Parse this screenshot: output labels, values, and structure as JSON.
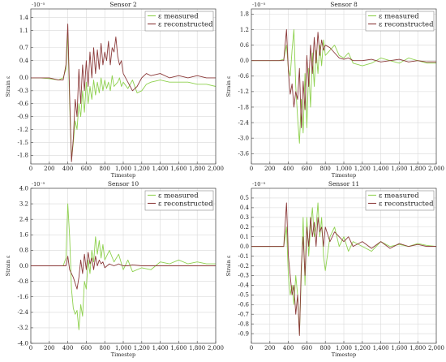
{
  "colors": {
    "measured": "#8fd14f",
    "reconstructed": "#8b3a3a",
    "grid": "#d9d9d9",
    "frame": "#444444"
  },
  "chart_data": [
    {
      "type": "line",
      "title": "Sensor 2",
      "xlabel": "Timestep",
      "ylabel": "Strain ε",
      "exponent": "·10⁻⁵",
      "xlim": [
        0,
        2000
      ],
      "ylim": [
        -2.0,
        1.6
      ],
      "xticks": [
        0,
        200,
        400,
        600,
        800,
        1000,
        1200,
        1400,
        1600,
        1800,
        2000
      ],
      "xtick_labels": [
        "0",
        "200",
        "400",
        "600",
        "800",
        "1,000",
        "1,200",
        "1,400",
        "1,600",
        "1,800",
        "2,000"
      ],
      "yticks": [
        -1.8,
        -1.5,
        -1.2,
        -0.9,
        -0.6,
        -0.3,
        0,
        0.4,
        0.7,
        1.1,
        1.4
      ],
      "ytick_labels": [
        "-1.8",
        "-1.5",
        "-1.2",
        "-0.9",
        "-0.6",
        "-0.3",
        "0.0",
        "0.4",
        "0.7",
        "1.1",
        "1.4"
      ],
      "grid": true,
      "legend": "top-right",
      "series": [
        {
          "name": "ε measured",
          "x": [
            0,
            100,
            200,
            300,
            350,
            380,
            400,
            420,
            440,
            460,
            480,
            500,
            520,
            540,
            560,
            580,
            600,
            620,
            640,
            660,
            680,
            700,
            720,
            740,
            760,
            780,
            800,
            820,
            840,
            860,
            880,
            900,
            920,
            940,
            960,
            980,
            1000,
            1050,
            1100,
            1150,
            1200,
            1250,
            1300,
            1400,
            1500,
            1600,
            1700,
            1800,
            1900,
            2000
          ],
          "y": [
            0,
            0,
            -0.02,
            -0.05,
            0,
            0.2,
            1.05,
            -0.6,
            -1.9,
            -1.5,
            -1.0,
            -1.2,
            -0.6,
            -0.9,
            -0.3,
            -0.8,
            -0.1,
            -0.6,
            -0.2,
            -0.5,
            -0.05,
            -0.4,
            -0.1,
            -0.35,
            0,
            -0.3,
            -0.05,
            -0.25,
            -0.1,
            -0.3,
            0.05,
            -0.2,
            -0.15,
            -0.1,
            0,
            -0.2,
            -0.1,
            -0.25,
            -0.05,
            -0.35,
            -0.3,
            -0.15,
            -0.1,
            -0.05,
            -0.1,
            -0.1,
            -0.1,
            -0.15,
            -0.15,
            -0.2
          ]
        },
        {
          "name": "ε reconstructed",
          "x": [
            0,
            100,
            200,
            300,
            350,
            380,
            400,
            420,
            440,
            460,
            480,
            500,
            520,
            540,
            560,
            580,
            600,
            620,
            640,
            660,
            680,
            700,
            720,
            740,
            760,
            780,
            800,
            820,
            840,
            860,
            880,
            900,
            920,
            940,
            960,
            980,
            1000,
            1050,
            1100,
            1150,
            1200,
            1250,
            1300,
            1400,
            1500,
            1600,
            1700,
            1800,
            1900,
            2000
          ],
          "y": [
            0,
            0,
            0,
            -0.05,
            -0.05,
            0.3,
            1.25,
            -0.4,
            -1.95,
            -1.4,
            -0.5,
            -0.9,
            0.2,
            -0.6,
            0.3,
            -0.3,
            0.4,
            -0.2,
            0.6,
            0,
            0.7,
            0.1,
            0.65,
            0.2,
            0.8,
            0.3,
            0.6,
            0.4,
            0.85,
            0.3,
            0.7,
            0.6,
            0.95,
            0.5,
            0.3,
            0.4,
            0.1,
            -0.1,
            -0.3,
            -0.2,
            0,
            0.1,
            0.05,
            0.1,
            0,
            0.05,
            0,
            0.05,
            0,
            0
          ]
        }
      ]
    },
    {
      "type": "line",
      "title": "Sensor 8",
      "xlabel": "Timestep",
      "ylabel": "Strain ε",
      "exponent": "·10⁻⁵",
      "xlim": [
        0,
        2000
      ],
      "ylim": [
        -4.0,
        2.0
      ],
      "xticks": [
        0,
        200,
        400,
        600,
        800,
        1000,
        1200,
        1400,
        1600,
        1800,
        2000
      ],
      "xtick_labels": [
        "0",
        "200",
        "400",
        "600",
        "800",
        "1,000",
        "1,200",
        "1,400",
        "1,600",
        "1,800",
        "2,000"
      ],
      "yticks": [
        -3.6,
        -3.0,
        -2.4,
        -1.8,
        -1.2,
        -0.6,
        0,
        0.6,
        1.2,
        1.8
      ],
      "ytick_labels": [
        "-3.6",
        "-3.0",
        "-2.4",
        "-1.8",
        "-1.2",
        "-0.6",
        "0.0",
        "0.6",
        "1.2",
        "1.8"
      ],
      "grid": true,
      "legend": "top-right",
      "series": [
        {
          "name": "ε measured",
          "x": [
            0,
            100,
            200,
            300,
            350,
            380,
            400,
            420,
            440,
            460,
            480,
            500,
            520,
            540,
            560,
            580,
            600,
            620,
            640,
            660,
            680,
            700,
            720,
            740,
            760,
            780,
            800,
            850,
            900,
            950,
            1000,
            1050,
            1100,
            1200,
            1300,
            1400,
            1500,
            1600,
            1700,
            1800,
            1900,
            2000
          ],
          "y": [
            0,
            0,
            0,
            0,
            0.05,
            0.6,
            -0.3,
            -0.6,
            0.4,
            1.2,
            -1.0,
            -2.2,
            -3.2,
            -1.5,
            -2.8,
            -0.5,
            -2.6,
            -0.3,
            -1.8,
            0.3,
            -1.0,
            0.4,
            -0.5,
            0.6,
            -0.2,
            0.8,
            0.2,
            0.4,
            0.6,
            0.2,
            0.1,
            0.3,
            -0.1,
            -0.2,
            -0.1,
            0.1,
            0,
            -0.1,
            0.1,
            0,
            -0.1,
            -0.1
          ]
        },
        {
          "name": "ε reconstructed",
          "x": [
            0,
            100,
            200,
            300,
            350,
            380,
            400,
            420,
            440,
            460,
            480,
            500,
            520,
            540,
            560,
            580,
            600,
            620,
            640,
            660,
            680,
            700,
            720,
            740,
            760,
            780,
            800,
            850,
            900,
            950,
            1000,
            1050,
            1100,
            1200,
            1300,
            1400,
            1500,
            1600,
            1700,
            1800,
            1900,
            2000
          ],
          "y": [
            0,
            0,
            0,
            0,
            0,
            1.2,
            -0.4,
            -1.3,
            -0.9,
            -1.8,
            -1.2,
            -1.5,
            -0.3,
            -2.6,
            -0.8,
            -1.9,
            0.2,
            -1.0,
            0.6,
            -0.5,
            0.9,
            -0.1,
            1.1,
            0.2,
            0.8,
            0.4,
            0.6,
            0.5,
            0.3,
            0.1,
            0.05,
            0.1,
            0,
            0,
            0.05,
            -0.05,
            0,
            0.05,
            -0.05,
            0,
            -0.05,
            -0.05
          ]
        }
      ]
    },
    {
      "type": "line",
      "title": "Sensor 10",
      "xlabel": "Timestep",
      "ylabel": "Strain ε",
      "exponent": "·10⁻⁵",
      "xlim": [
        0,
        2000
      ],
      "ylim": [
        -4.0,
        4.0
      ],
      "xticks": [
        0,
        200,
        400,
        600,
        800,
        1000,
        1200,
        1400,
        1600,
        1800,
        2000
      ],
      "xtick_labels": [
        "0",
        "200",
        "400",
        "600",
        "800",
        "1,000",
        "1,200",
        "1,400",
        "1,600",
        "1,800",
        "2,000"
      ],
      "yticks": [
        -4.0,
        -3.2,
        -2.4,
        -1.6,
        -0.8,
        0,
        0.8,
        1.6,
        2.4,
        3.2,
        4.0
      ],
      "ytick_labels": [
        "-4.0",
        "-3.2",
        "-2.4",
        "-1.6",
        "-0.8",
        "0.0",
        "0.8",
        "1.6",
        "2.4",
        "3.2",
        "4.0"
      ],
      "grid": true,
      "legend": "top-right",
      "series": [
        {
          "name": "ε measured",
          "x": [
            0,
            100,
            200,
            300,
            350,
            380,
            400,
            420,
            440,
            460,
            480,
            500,
            520,
            540,
            560,
            580,
            600,
            620,
            640,
            660,
            680,
            700,
            720,
            740,
            760,
            780,
            800,
            850,
            900,
            950,
            1000,
            1050,
            1100,
            1200,
            1300,
            1400,
            1500,
            1600,
            1700,
            1800,
            1900,
            2000
          ],
          "y": [
            0,
            0,
            0,
            0,
            0,
            0.4,
            3.2,
            1.5,
            -1.2,
            -2.2,
            -2.5,
            -2.3,
            -3.3,
            -2.0,
            -2.6,
            -0.8,
            -1.2,
            0.3,
            -0.4,
            0.8,
            0.2,
            1.5,
            0.6,
            1.3,
            0.4,
            1.1,
            0.3,
            0.8,
            0.2,
            0.6,
            -0.2,
            0.3,
            -0.3,
            -0.1,
            -0.2,
            0.2,
            0.1,
            0.3,
            0.1,
            0.2,
            0.1,
            0.1
          ]
        },
        {
          "name": "ε reconstructed",
          "x": [
            0,
            100,
            200,
            300,
            350,
            380,
            400,
            420,
            440,
            460,
            480,
            500,
            520,
            540,
            560,
            580,
            600,
            620,
            640,
            660,
            680,
            700,
            720,
            740,
            760,
            780,
            800,
            850,
            900,
            950,
            1000,
            1050,
            1100,
            1200,
            1300,
            1400,
            1500,
            1600,
            1700,
            1800,
            1900,
            2000
          ],
          "y": [
            0,
            0,
            0,
            0,
            0,
            0,
            0.5,
            -0.2,
            -0.4,
            -0.6,
            -0.9,
            -1.2,
            -0.6,
            0.3,
            -0.4,
            0.6,
            -0.2,
            0.7,
            0.1,
            0.4,
            -0.2,
            0.5,
            0,
            0.3,
            0.1,
            0.2,
            -0.1,
            0.1,
            0,
            0.1,
            0,
            0,
            0.05,
            0,
            0,
            0,
            0,
            0,
            0,
            0,
            0,
            0
          ]
        }
      ]
    },
    {
      "type": "line",
      "title": "Sensor 11",
      "xlabel": "Timestep",
      "ylabel": "Strain ε",
      "exponent": "·10⁻⁵",
      "xlim": [
        0,
        2000
      ],
      "ylim": [
        -1.0,
        0.6
      ],
      "xticks": [
        0,
        200,
        400,
        600,
        800,
        1000,
        1200,
        1400,
        1600,
        1800,
        2000
      ],
      "xtick_labels": [
        "0",
        "200",
        "400",
        "600",
        "800",
        "1,000",
        "1,200",
        "1,400",
        "1,600",
        "1,800",
        "2,000"
      ],
      "yticks": [
        -0.9,
        -0.8,
        -0.7,
        -0.6,
        -0.5,
        -0.4,
        -0.3,
        -0.2,
        -0.1,
        0,
        0.1,
        0.2,
        0.3,
        0.4,
        0.5
      ],
      "ytick_labels": [
        "-0.9",
        "-0.8",
        "-0.7",
        "-0.6",
        "-0.5",
        "-0.4",
        "-0.3",
        "-0.2",
        "-0.1",
        "0.0",
        "0.1",
        "0.2",
        "0.3",
        "0.4",
        "0.5"
      ],
      "grid": true,
      "legend": "top-right",
      "series": [
        {
          "name": "ε measured",
          "x": [
            0,
            100,
            200,
            300,
            350,
            380,
            400,
            420,
            440,
            460,
            480,
            500,
            520,
            540,
            560,
            580,
            600,
            620,
            640,
            660,
            680,
            700,
            720,
            740,
            760,
            780,
            800,
            850,
            900,
            950,
            1000,
            1050,
            1100,
            1200,
            1300,
            1400,
            1500,
            1600,
            1700,
            1800,
            1900,
            2000
          ],
          "y": [
            0,
            0,
            0,
            0,
            0,
            0.2,
            -0.3,
            -0.5,
            -0.4,
            -0.6,
            -0.3,
            -0.5,
            -0.9,
            -0.3,
            0.3,
            -0.4,
            0.3,
            -0.1,
            0.2,
            0.4,
            0.1,
            0.2,
            0.45,
            0.1,
            0.3,
            -0.1,
            -0.25,
            0.1,
            0.2,
            0,
            0.1,
            -0.05,
            0.05,
            0,
            -0.05,
            0.05,
            0,
            0.02,
            0,
            0.03,
            0.01,
            0
          ]
        },
        {
          "name": "ε reconstructed",
          "x": [
            0,
            100,
            200,
            300,
            350,
            380,
            400,
            420,
            440,
            460,
            480,
            500,
            520,
            540,
            560,
            580,
            600,
            620,
            640,
            660,
            680,
            700,
            720,
            740,
            760,
            780,
            800,
            850,
            900,
            950,
            1000,
            1050,
            1100,
            1200,
            1300,
            1400,
            1500,
            1600,
            1700,
            1800,
            1900,
            2000
          ],
          "y": [
            0,
            0,
            0,
            0,
            0,
            0.45,
            -0.1,
            -0.3,
            -0.5,
            -0.4,
            -0.7,
            -0.5,
            -0.92,
            -0.2,
            0.1,
            -0.3,
            0.2,
            0,
            0.3,
            0.1,
            0.25,
            0,
            0.3,
            0.15,
            0.2,
            0,
            0.2,
            0.05,
            0.15,
            0.1,
            0.05,
            0.1,
            0,
            0.05,
            -0.02,
            0.05,
            -0.02,
            0.03,
            0,
            0.02,
            0,
            0
          ]
        }
      ]
    }
  ]
}
